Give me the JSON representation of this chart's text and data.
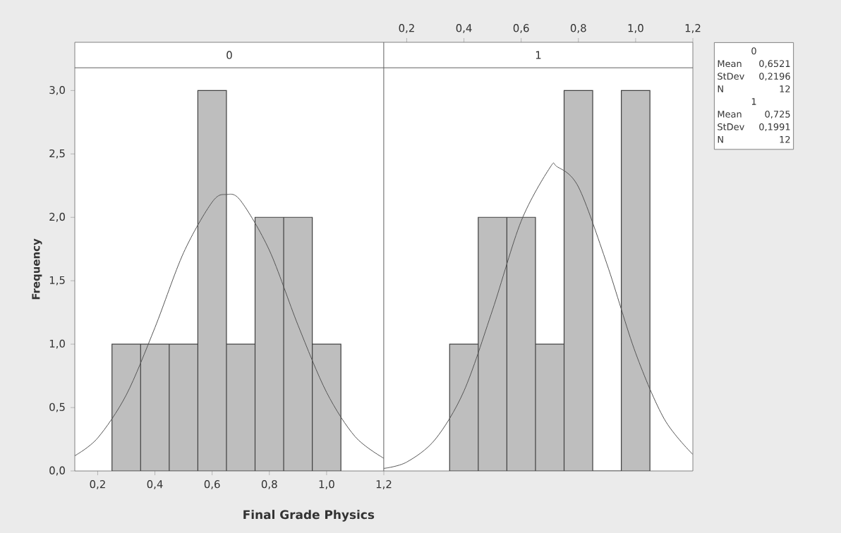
{
  "chart_data": [
    {
      "type": "histogram",
      "title": "0",
      "xlabel": "Final Grade Physics",
      "ylabel": "Frequency",
      "xlim": [
        0.12,
        1.2
      ],
      "ylim": [
        0,
        3.18
      ],
      "xticks": [
        {
          "value": 0.2,
          "label": "0,2"
        },
        {
          "value": 0.4,
          "label": "0,4"
        },
        {
          "value": 0.6,
          "label": "0,6"
        },
        {
          "value": 0.8,
          "label": "0,8"
        },
        {
          "value": 1.0,
          "label": "1,0"
        },
        {
          "value": 1.2,
          "label": "1,2"
        }
      ],
      "yticks": [
        {
          "value": 0,
          "label": "0,0"
        },
        {
          "value": 0.5,
          "label": "0,5"
        },
        {
          "value": 1.0,
          "label": "1,0"
        },
        {
          "value": 1.5,
          "label": "1,5"
        },
        {
          "value": 2.0,
          "label": "2,0"
        },
        {
          "value": 2.5,
          "label": "2,5"
        },
        {
          "value": 3.0,
          "label": "3,0"
        }
      ],
      "series": [
        {
          "color": "#bebebe",
          "bins": [
            0.25,
            0.35,
            0.45,
            0.55,
            0.65,
            0.75,
            0.85,
            0.95,
            1.05
          ],
          "values": [
            1,
            1,
            1,
            3,
            1,
            2,
            2,
            1
          ]
        },
        {
          "type": "line",
          "color": "#555555",
          "x": [
            0.12,
            0.2,
            0.3,
            0.4,
            0.5,
            0.6,
            0.65,
            0.7,
            0.8,
            0.9,
            1.0,
            1.1,
            1.2
          ],
          "values": [
            0.12,
            0.26,
            0.6,
            1.13,
            1.72,
            2.12,
            2.18,
            2.13,
            1.74,
            1.15,
            0.62,
            0.27,
            0.1
          ]
        }
      ]
    },
    {
      "type": "histogram",
      "title": "1",
      "xlim": [
        0.12,
        1.2
      ],
      "ylim": [
        0,
        3.18
      ],
      "tick_labels": "x",
      "xticks": [
        {
          "value": 0.2,
          "label": "0,2"
        },
        {
          "value": 0.4,
          "label": "0,4"
        },
        {
          "value": 0.6,
          "label": "0,6"
        },
        {
          "value": 0.8,
          "label": "0,8"
        },
        {
          "value": 1.0,
          "label": "1,0"
        },
        {
          "value": 1.2,
          "label": "1,2"
        }
      ],
      "series": [
        {
          "color": "#bebebe",
          "bins": [
            0.35,
            0.45,
            0.55,
            0.65,
            0.75,
            0.85,
            0.95,
            1.05
          ],
          "values": [
            1,
            2,
            2,
            1,
            3,
            0,
            3
          ]
        },
        {
          "type": "line",
          "color": "#555555",
          "x": [
            0.12,
            0.2,
            0.3,
            0.4,
            0.5,
            0.6,
            0.7,
            0.725,
            0.8,
            0.9,
            1.0,
            1.1,
            1.2
          ],
          "values": [
            0.02,
            0.07,
            0.25,
            0.63,
            1.27,
            1.97,
            2.39,
            2.4,
            2.24,
            1.63,
            0.93,
            0.41,
            0.13
          ]
        }
      ],
      "annotations": [
        "0",
        "Mean",
        "0,6521",
        "StDev",
        "0,2196",
        "N",
        "12",
        "1",
        "Mean",
        "0,725",
        "StDev",
        "0,1991",
        "N",
        "12"
      ]
    }
  ]
}
